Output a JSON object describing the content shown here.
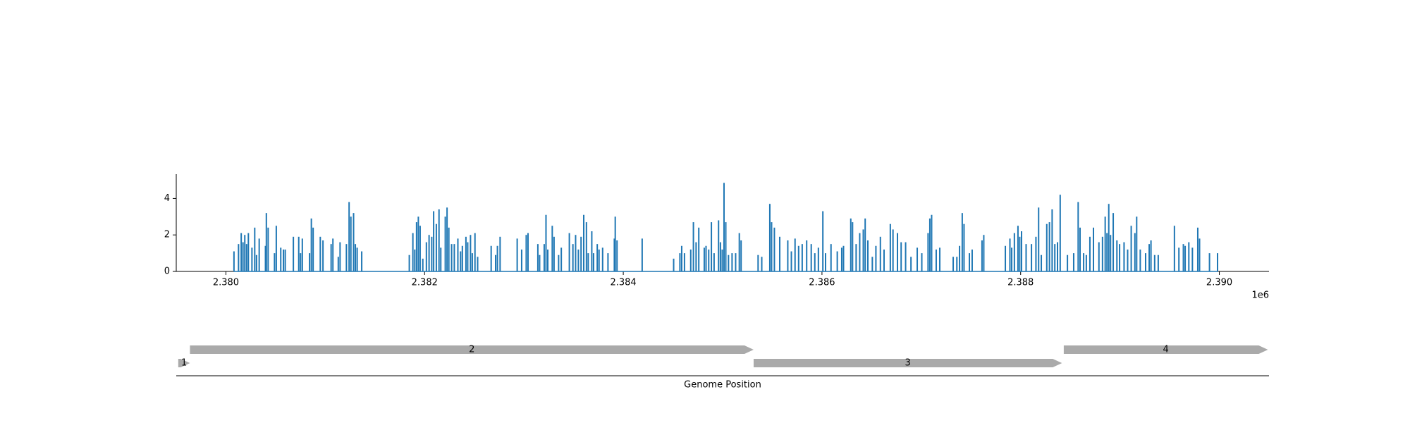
{
  "chart_data": [
    {
      "type": "bar",
      "color": "#1f77b4",
      "x": [
        2380081,
        2380127,
        2380154,
        2380172,
        2380190,
        2380208,
        2380226,
        2380262,
        2380290,
        2380308,
        2380335,
        2380398,
        2380407,
        2380425,
        2380489,
        2380507,
        2380552,
        2380579,
        2380597,
        2380679,
        2380733,
        2380751,
        2380769,
        2380842,
        2380860,
        2380878,
        2380950,
        2380977,
        2381059,
        2381077,
        2381131,
        2381149,
        2381213,
        2381240,
        2381258,
        2381285,
        2381303,
        2381321,
        2381367,
        2381846,
        2381882,
        2381901,
        2381919,
        2381937,
        2381955,
        2381982,
        2382018,
        2382045,
        2382072,
        2382091,
        2382118,
        2382145,
        2382163,
        2382208,
        2382226,
        2382244,
        2382272,
        2382299,
        2382335,
        2382362,
        2382380,
        2382416,
        2382434,
        2382462,
        2382480,
        2382507,
        2382534,
        2382670,
        2382715,
        2382733,
        2382760,
        2382932,
        2382977,
        2383023,
        2383041,
        2383140,
        2383158,
        2383204,
        2383222,
        2383240,
        2383285,
        2383303,
        2383349,
        2383376,
        2383457,
        2383493,
        2383520,
        2383548,
        2383575,
        2383602,
        2383629,
        2383647,
        2383683,
        2383701,
        2383738,
        2383756,
        2383792,
        2383846,
        2383910,
        2383919,
        2383937,
        2384190,
        2384507,
        2384570,
        2384588,
        2384616,
        2384679,
        2384706,
        2384733,
        2384760,
        2384815,
        2384833,
        2384860,
        2384887,
        2384914,
        2384959,
        2384978,
        2384996,
        2385014,
        2385032,
        2385059,
        2385095,
        2385131,
        2385168,
        2385186,
        2385357,
        2385394,
        2385475,
        2385493,
        2385521,
        2385575,
        2385656,
        2385692,
        2385729,
        2385765,
        2385801,
        2385846,
        2385892,
        2385928,
        2385964,
        2386009,
        2386036,
        2386091,
        2386154,
        2386199,
        2386217,
        2386290,
        2386308,
        2386344,
        2386380,
        2386416,
        2386435,
        2386462,
        2386507,
        2386543,
        2386588,
        2386625,
        2386688,
        2386715,
        2386760,
        2386797,
        2386842,
        2386896,
        2386959,
        2387005,
        2387068,
        2387086,
        2387104,
        2387150,
        2387186,
        2387321,
        2387358,
        2387385,
        2387412,
        2387430,
        2387484,
        2387512,
        2387611,
        2387629,
        2387846,
        2387892,
        2387910,
        2387937,
        2387973,
        2387991,
        2388009,
        2388055,
        2388109,
        2388154,
        2388181,
        2388208,
        2388263,
        2388290,
        2388317,
        2388344,
        2388371,
        2388398,
        2388471,
        2388534,
        2388579,
        2388598,
        2388634,
        2388661,
        2388697,
        2388733,
        2388788,
        2388824,
        2388851,
        2388869,
        2388887,
        2388905,
        2388932,
        2388969,
        2388996,
        2389041,
        2389077,
        2389113,
        2389150,
        2389168,
        2389204,
        2389258,
        2389294,
        2389312,
        2389349,
        2389385,
        2389548,
        2389593,
        2389638,
        2389656,
        2389693,
        2389729,
        2389783,
        2389801,
        2389901,
        2389982
      ],
      "values": [
        1.1,
        1.5,
        2.1,
        1.6,
        2.0,
        1.5,
        2.1,
        1.3,
        2.4,
        0.9,
        1.8,
        1.4,
        3.2,
        2.4,
        1.0,
        2.5,
        1.3,
        1.2,
        1.2,
        1.9,
        1.9,
        1.0,
        1.8,
        1.0,
        2.9,
        2.4,
        1.9,
        1.7,
        1.5,
        1.8,
        0.8,
        1.6,
        1.5,
        3.8,
        3.0,
        3.2,
        1.5,
        1.3,
        1.1,
        0.9,
        2.1,
        1.2,
        2.7,
        3.0,
        2.5,
        0.7,
        1.6,
        2.0,
        1.9,
        3.3,
        2.6,
        3.4,
        1.3,
        3.0,
        3.5,
        2.4,
        1.5,
        1.5,
        1.8,
        1.1,
        1.4,
        1.9,
        1.6,
        2.0,
        1.0,
        2.1,
        0.8,
        1.4,
        0.9,
        1.4,
        1.9,
        1.8,
        1.2,
        2.0,
        2.1,
        1.5,
        0.9,
        1.5,
        3.1,
        1.2,
        2.5,
        1.9,
        0.9,
        1.3,
        2.1,
        1.5,
        2.0,
        1.2,
        1.9,
        3.1,
        2.7,
        1.0,
        2.2,
        1.0,
        1.5,
        1.2,
        1.3,
        1.0,
        1.8,
        3.0,
        1.7,
        1.8,
        0.7,
        1.0,
        1.4,
        1.0,
        1.2,
        2.7,
        1.6,
        2.4,
        1.3,
        1.4,
        1.2,
        2.7,
        1.0,
        2.8,
        1.6,
        1.2,
        4.85,
        2.7,
        0.9,
        1.0,
        1.0,
        2.1,
        1.7,
        0.9,
        0.8,
        3.7,
        2.7,
        2.4,
        1.9,
        1.7,
        1.1,
        1.8,
        1.4,
        1.5,
        1.7,
        1.5,
        1.0,
        1.3,
        3.3,
        1.0,
        1.5,
        1.1,
        1.3,
        1.4,
        2.9,
        2.7,
        1.5,
        2.1,
        2.3,
        2.9,
        1.7,
        0.8,
        1.4,
        1.9,
        1.2,
        2.6,
        2.3,
        2.1,
        1.6,
        1.6,
        0.8,
        1.3,
        1.0,
        2.1,
        2.9,
        3.1,
        1.2,
        1.3,
        0.8,
        0.8,
        1.4,
        3.2,
        2.6,
        1.0,
        1.2,
        1.7,
        2.0,
        1.4,
        1.8,
        1.3,
        2.1,
        2.5,
        1.9,
        2.2,
        1.5,
        1.5,
        1.9,
        3.5,
        0.9,
        2.6,
        2.7,
        3.4,
        1.5,
        1.6,
        4.2,
        0.9,
        1.0,
        3.8,
        2.4,
        1.0,
        0.9,
        1.9,
        2.4,
        1.6,
        1.9,
        3.0,
        2.1,
        3.7,
        2.0,
        3.2,
        1.7,
        1.5,
        1.6,
        1.2,
        2.5,
        2.1,
        3.0,
        1.2,
        1.0,
        1.5,
        1.7,
        0.9,
        0.9,
        2.5,
        1.3,
        1.5,
        1.4,
        1.6,
        1.3,
        2.4,
        1.8,
        1.0,
        1.0
      ],
      "xlim": [
        2379500,
        2390500
      ],
      "xticks": [
        {
          "value": 2380000,
          "label": "2.380"
        },
        {
          "value": 2382000,
          "label": "2.382"
        },
        {
          "value": 2384000,
          "label": "2.384"
        },
        {
          "value": 2386000,
          "label": "2.386"
        },
        {
          "value": 2388000,
          "label": "2.388"
        },
        {
          "value": 2390000,
          "label": "2.390"
        }
      ],
      "x_offset_label": "1e6",
      "ylim": [
        0,
        5.33
      ],
      "yticks": [
        0,
        2,
        4
      ]
    },
    {
      "type": "genes",
      "color": "#aaaaaa",
      "xlabel": "Genome Position",
      "xlim": [
        2379500,
        2390500
      ],
      "genes": [
        {
          "label": "1",
          "start": 2379520,
          "end": 2379638
        },
        {
          "label": "2",
          "start": 2379638,
          "end": 2385312
        },
        {
          "label": "3",
          "start": 2385312,
          "end": 2388416
        },
        {
          "label": "4",
          "start": 2388434,
          "end": 2390489
        }
      ]
    }
  ]
}
